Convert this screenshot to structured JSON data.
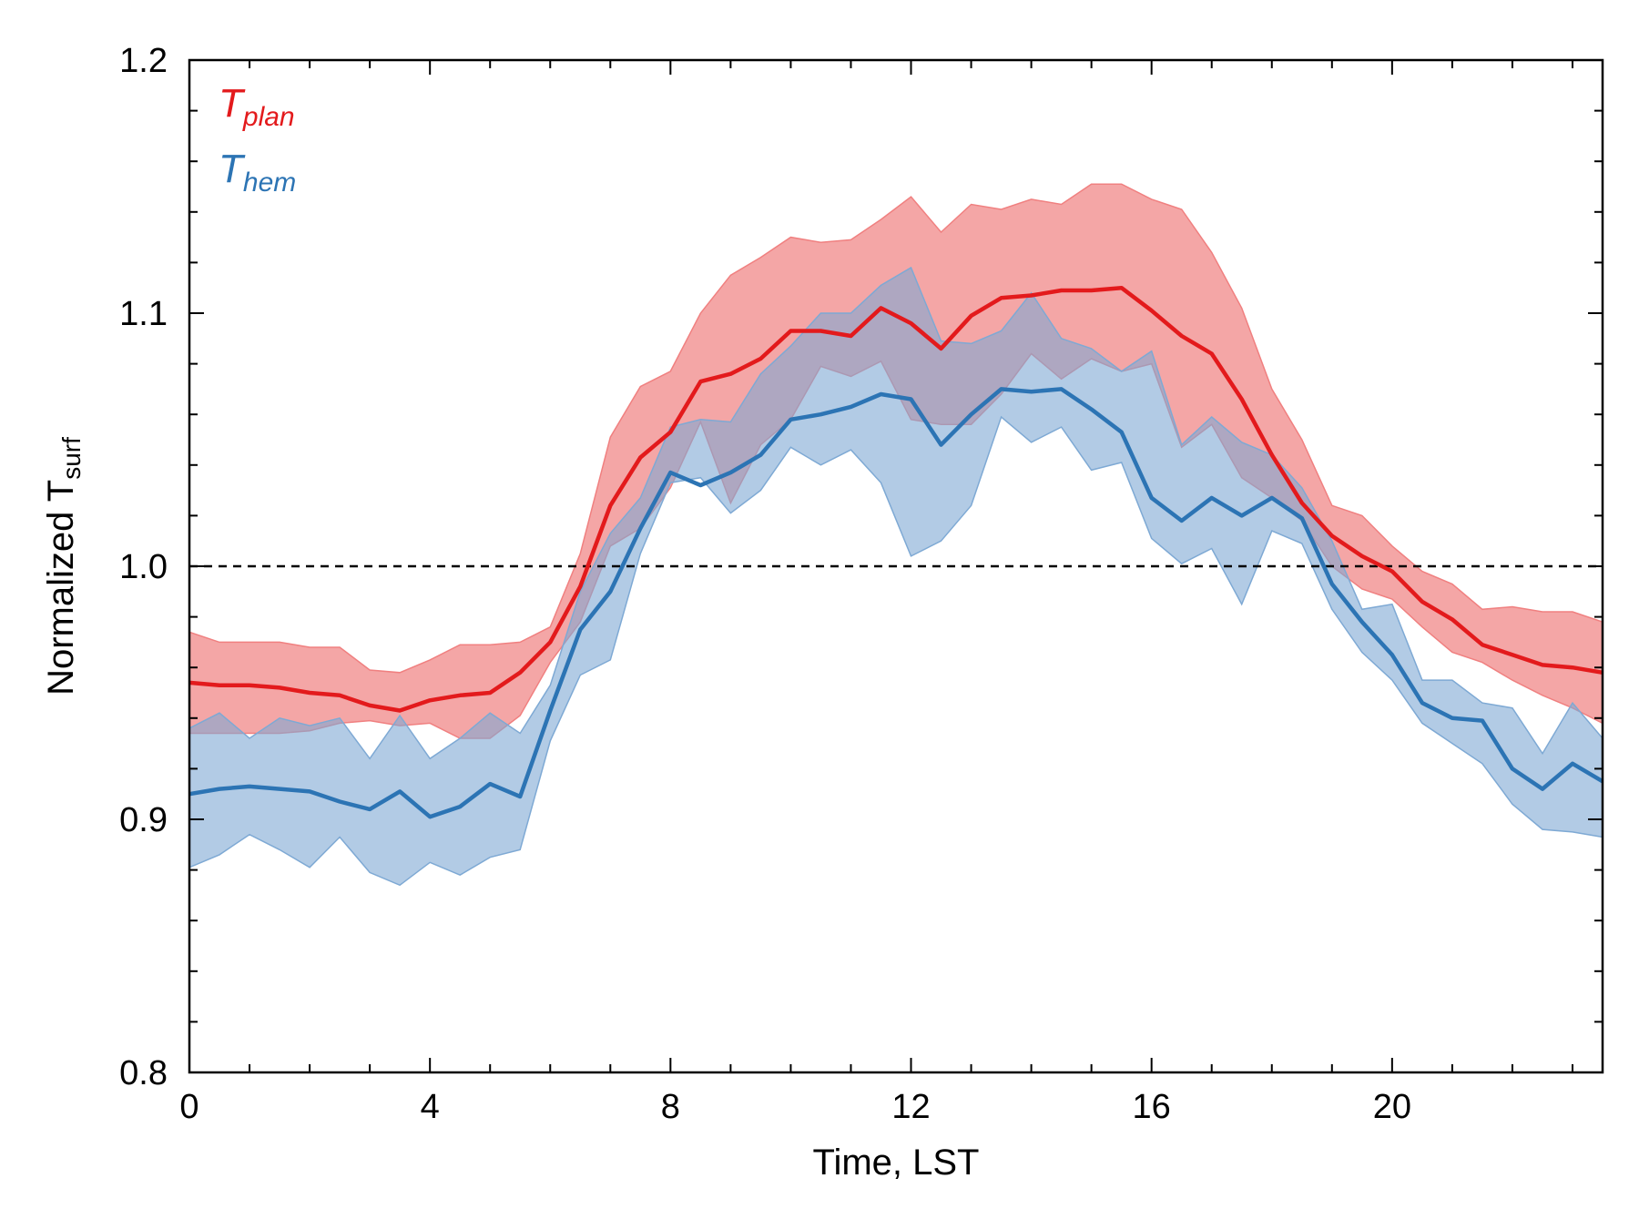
{
  "chart_data": {
    "type": "line",
    "xlabel": "Time, LST",
    "ylabel_main": "Normalized T",
    "ylabel_sub": "surf",
    "xlim": [
      0,
      23.5
    ],
    "ylim": [
      0.8,
      1.2
    ],
    "xticks": [
      0,
      4,
      8,
      12,
      16,
      20
    ],
    "yticks": [
      0.8,
      0.9,
      1.0,
      1.1,
      1.2
    ],
    "ytick_labels": [
      "0.8",
      "0.9",
      "1.0",
      "1.1",
      "1.2"
    ],
    "reference_line": 1.0,
    "grid": false,
    "legend_position": "top-left",
    "x": [
      0,
      0.5,
      1,
      1.5,
      2,
      2.5,
      3,
      3.5,
      4,
      4.5,
      5,
      5.5,
      6,
      6.5,
      7,
      7.5,
      8,
      8.5,
      9,
      9.5,
      10,
      10.5,
      11,
      11.5,
      12,
      12.5,
      13,
      13.5,
      14,
      14.5,
      15,
      15.5,
      16,
      16.5,
      17,
      17.5,
      18,
      18.5,
      19,
      19.5,
      20,
      20.5,
      21,
      21.5,
      22,
      22.5,
      23,
      23.5
    ],
    "series": [
      {
        "name_main": "T",
        "name_sub": "plan",
        "color": "#e31a1c",
        "band_color": "#f08080",
        "values": [
          0.954,
          0.953,
          0.953,
          0.952,
          0.95,
          0.949,
          0.945,
          0.943,
          0.947,
          0.949,
          0.95,
          0.958,
          0.97,
          0.992,
          1.024,
          1.043,
          1.053,
          1.073,
          1.076,
          1.082,
          1.093,
          1.093,
          1.091,
          1.102,
          1.096,
          1.086,
          1.099,
          1.106,
          1.107,
          1.109,
          1.109,
          1.11,
          1.101,
          1.091,
          1.084,
          1.066,
          1.044,
          1.025,
          1.012,
          1.004,
          0.998,
          0.986,
          0.979,
          0.969,
          0.965,
          0.961,
          0.96,
          0.958
        ],
        "upper": [
          0.974,
          0.97,
          0.97,
          0.97,
          0.968,
          0.968,
          0.959,
          0.958,
          0.963,
          0.969,
          0.969,
          0.97,
          0.976,
          1.005,
          1.051,
          1.071,
          1.077,
          1.1,
          1.115,
          1.122,
          1.13,
          1.128,
          1.129,
          1.137,
          1.146,
          1.132,
          1.143,
          1.141,
          1.145,
          1.143,
          1.151,
          1.151,
          1.145,
          1.141,
          1.124,
          1.102,
          1.07,
          1.05,
          1.024,
          1.02,
          1.008,
          0.998,
          0.993,
          0.983,
          0.984,
          0.982,
          0.982,
          0.978
        ],
        "lower": [
          0.934,
          0.934,
          0.934,
          0.934,
          0.935,
          0.938,
          0.939,
          0.937,
          0.938,
          0.932,
          0.932,
          0.941,
          0.962,
          0.978,
          1.008,
          1.015,
          1.031,
          1.057,
          1.025,
          1.048,
          1.058,
          1.079,
          1.075,
          1.081,
          1.058,
          1.056,
          1.056,
          1.068,
          1.084,
          1.074,
          1.082,
          1.077,
          1.08,
          1.047,
          1.056,
          1.035,
          1.027,
          1.018,
          1.0,
          0.991,
          0.987,
          0.976,
          0.966,
          0.962,
          0.955,
          0.949,
          0.944,
          0.938
        ]
      },
      {
        "name_main": "T",
        "name_sub": "hem",
        "color": "#2c74b4",
        "band_color": "#7ea9d4",
        "values": [
          0.91,
          0.912,
          0.913,
          0.912,
          0.911,
          0.907,
          0.904,
          0.911,
          0.901,
          0.905,
          0.914,
          0.909,
          0.943,
          0.975,
          0.99,
          1.015,
          1.037,
          1.032,
          1.037,
          1.044,
          1.058,
          1.06,
          1.063,
          1.068,
          1.066,
          1.048,
          1.06,
          1.07,
          1.069,
          1.07,
          1.062,
          1.053,
          1.027,
          1.018,
          1.027,
          1.02,
          1.027,
          1.019,
          0.993,
          0.978,
          0.965,
          0.946,
          0.94,
          0.939,
          0.92,
          0.912,
          0.922,
          0.915
        ],
        "upper": [
          0.936,
          0.942,
          0.932,
          0.94,
          0.937,
          0.94,
          0.924,
          0.941,
          0.924,
          0.932,
          0.942,
          0.934,
          0.953,
          0.99,
          1.013,
          1.027,
          1.055,
          1.058,
          1.057,
          1.076,
          1.087,
          1.1,
          1.1,
          1.111,
          1.118,
          1.089,
          1.088,
          1.093,
          1.108,
          1.09,
          1.086,
          1.077,
          1.085,
          1.048,
          1.059,
          1.049,
          1.044,
          1.031,
          1.01,
          0.983,
          0.985,
          0.955,
          0.955,
          0.946,
          0.944,
          0.926,
          0.946,
          0.932
        ],
        "lower": [
          0.881,
          0.886,
          0.894,
          0.888,
          0.881,
          0.893,
          0.879,
          0.874,
          0.883,
          0.878,
          0.885,
          0.888,
          0.931,
          0.957,
          0.963,
          1.005,
          1.033,
          1.035,
          1.021,
          1.03,
          1.047,
          1.04,
          1.046,
          1.033,
          1.004,
          1.01,
          1.024,
          1.059,
          1.049,
          1.055,
          1.038,
          1.041,
          1.011,
          1.001,
          1.007,
          0.985,
          1.014,
          1.009,
          0.983,
          0.966,
          0.955,
          0.938,
          0.93,
          0.922,
          0.906,
          0.896,
          0.895,
          0.893
        ]
      }
    ]
  }
}
